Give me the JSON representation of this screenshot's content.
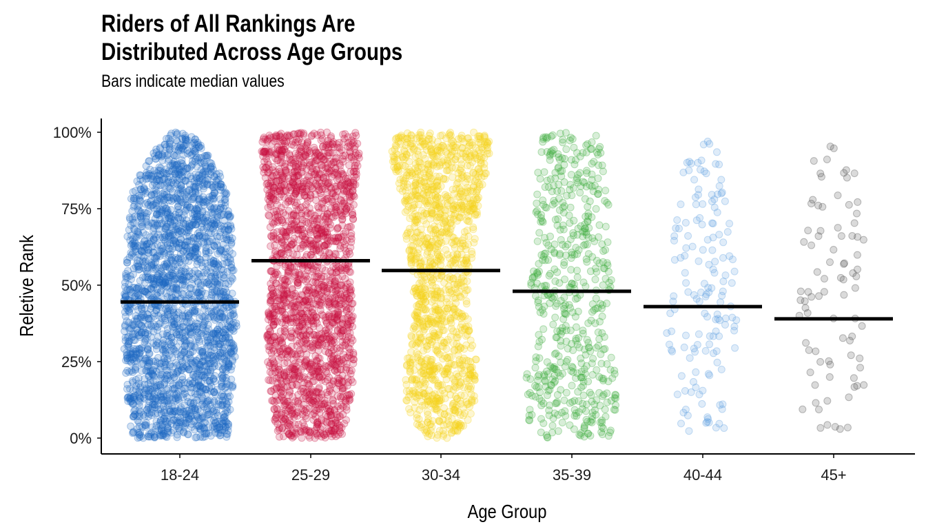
{
  "chart_data": {
    "type": "scatter",
    "subtype": "beeswarm-with-median-bars",
    "title_lines": [
      "Riders of All Rankings Are",
      "Distributed Across Age Groups"
    ],
    "subtitle": "Bars indicate median values",
    "xlabel": "Age Group",
    "ylabel": "Reletive Rank",
    "y_ticks": [
      "0%",
      "25%",
      "50%",
      "75%",
      "100%"
    ],
    "ylim": [
      0,
      1
    ],
    "grid": false,
    "legend": "none",
    "point_opacity": 0.2,
    "groups": [
      {
        "name": "18-24",
        "median": 0.445,
        "color": "#1f6ac2",
        "approx_n": 2400
      },
      {
        "name": "25-29",
        "median": 0.58,
        "color": "#c8103f",
        "approx_n": 1900
      },
      {
        "name": "30-34",
        "median": 0.548,
        "color": "#f5d31a",
        "approx_n": 1300
      },
      {
        "name": "35-39",
        "median": 0.48,
        "color": "#3aab3a",
        "approx_n": 560
      },
      {
        "name": "40-44",
        "median": 0.43,
        "color": "#5d9ee0",
        "approx_n": 155
      },
      {
        "name": "45+",
        "median": 0.39,
        "color": "#444444",
        "approx_n": 85
      }
    ]
  }
}
